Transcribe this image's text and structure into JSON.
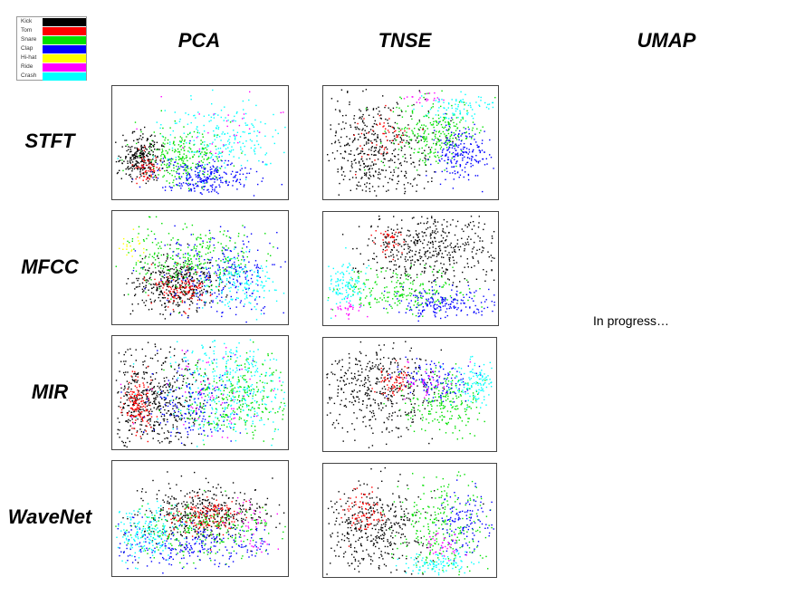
{
  "columns": {
    "pca": "PCA",
    "tnse": "TNSE",
    "umap": "UMAP"
  },
  "rows": {
    "stft": "STFT",
    "mfcc": "MFCC",
    "mir": "MIR",
    "wavenet": "WaveNet"
  },
  "umap_status": "In progress…",
  "legend": [
    {
      "label": "Kick",
      "color": "#000000"
    },
    {
      "label": "Tom",
      "color": "#ff0000"
    },
    {
      "label": "Snare",
      "color": "#00e000"
    },
    {
      "label": "Clap",
      "color": "#0000ff"
    },
    {
      "label": "Hi-hat",
      "color": "#ffff00"
    },
    {
      "label": "Ride",
      "color": "#ff00ff"
    },
    {
      "label": "Crash",
      "color": "#00ffff"
    }
  ],
  "chart_data": [
    {
      "type": "scatter",
      "method": "PCA",
      "feature": "STFT",
      "series": [
        "Kick",
        "Tom",
        "Snare",
        "Clap",
        "Hi-hat",
        "Ride",
        "Crash"
      ]
    },
    {
      "type": "scatter",
      "method": "TNSE",
      "feature": "STFT",
      "series": [
        "Kick",
        "Tom",
        "Snare",
        "Clap",
        "Hi-hat",
        "Ride",
        "Crash"
      ]
    },
    {
      "type": "scatter",
      "method": "PCA",
      "feature": "MFCC",
      "series": [
        "Kick",
        "Tom",
        "Snare",
        "Clap",
        "Hi-hat",
        "Ride",
        "Crash"
      ]
    },
    {
      "type": "scatter",
      "method": "TNSE",
      "feature": "MFCC",
      "series": [
        "Kick",
        "Tom",
        "Snare",
        "Clap",
        "Hi-hat",
        "Ride",
        "Crash"
      ]
    },
    {
      "type": "scatter",
      "method": "PCA",
      "feature": "MIR",
      "series": [
        "Kick",
        "Tom",
        "Snare",
        "Clap",
        "Hi-hat",
        "Ride",
        "Crash"
      ]
    },
    {
      "type": "scatter",
      "method": "TNSE",
      "feature": "MIR",
      "series": [
        "Kick",
        "Tom",
        "Snare",
        "Clap",
        "Hi-hat",
        "Ride",
        "Crash"
      ]
    },
    {
      "type": "scatter",
      "method": "PCA",
      "feature": "WaveNet",
      "series": [
        "Kick",
        "Tom",
        "Snare",
        "Clap",
        "Hi-hat",
        "Ride",
        "Crash"
      ]
    },
    {
      "type": "scatter",
      "method": "TNSE",
      "feature": "WaveNet",
      "series": [
        "Kick",
        "Tom",
        "Snare",
        "Clap",
        "Hi-hat",
        "Ride",
        "Crash"
      ]
    }
  ]
}
